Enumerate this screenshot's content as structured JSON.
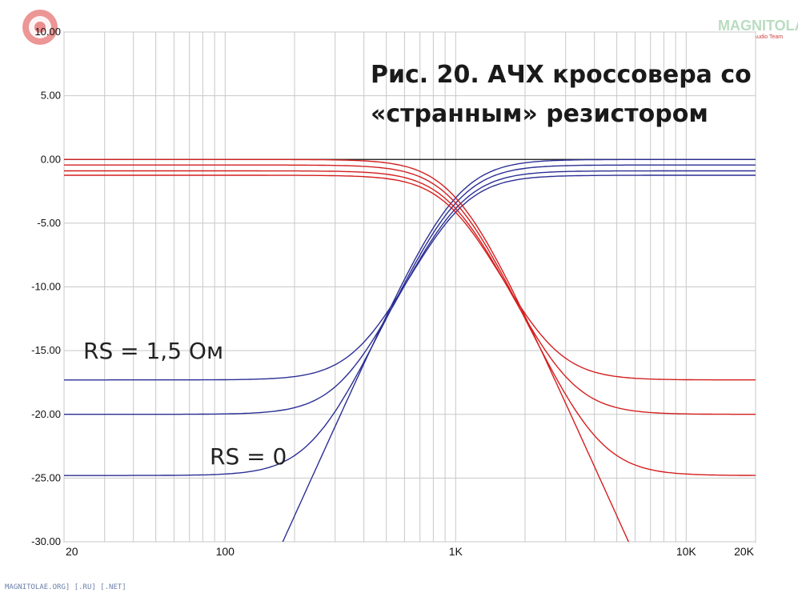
{
  "chart_data": {
    "type": "line",
    "title_lines": [
      "Рис. 20. АЧХ кроссовера со",
      "«странным» резистором"
    ],
    "annotations": [
      "RS = 1,5 Ом",
      "RS = 0"
    ],
    "x_scale": "log",
    "xlim": [
      20,
      20000
    ],
    "ylim": [
      -30,
      10
    ],
    "y_ticks": [
      "10.00",
      "5.00",
      "0.00",
      "-5.00",
      "-10.00",
      "-15.00",
      "-20.00",
      "-25.00",
      "-30.00"
    ],
    "x_ticks": [
      "20",
      "100",
      "1K",
      "10K",
      "20K"
    ],
    "grid": true,
    "series": [
      {
        "group": "highpass",
        "floor_db": -17.3,
        "offset_db": -1.35
      },
      {
        "group": "highpass",
        "floor_db": -20.0,
        "offset_db": -0.95
      },
      {
        "group": "highpass",
        "floor_db": -24.8,
        "offset_db": -0.45
      },
      {
        "group": "highpass",
        "floor_db": -60,
        "offset_db": 0
      },
      {
        "group": "lowpass",
        "floor_db": -17.3,
        "offset_db": -1.35
      },
      {
        "group": "lowpass",
        "floor_db": -20.0,
        "offset_db": -0.95
      },
      {
        "group": "lowpass",
        "floor_db": -24.8,
        "offset_db": -0.45
      },
      {
        "group": "lowpass",
        "floor_db": -60,
        "offset_db": 0
      }
    ],
    "crossover_hz": 1000,
    "reference_line_db": 0
  },
  "colors": {
    "highpass": "#2b2f94",
    "lowpass": "#d41f1f",
    "grid": "#c8c8c8",
    "reference": "#111111",
    "watermark": "#e06a6a"
  },
  "footer": "MAGNITOLAE.ORG] [.RU] [.NET]",
  "brand": {
    "name": "MAGNITOLA",
    "sub": "CarAudio Team"
  }
}
